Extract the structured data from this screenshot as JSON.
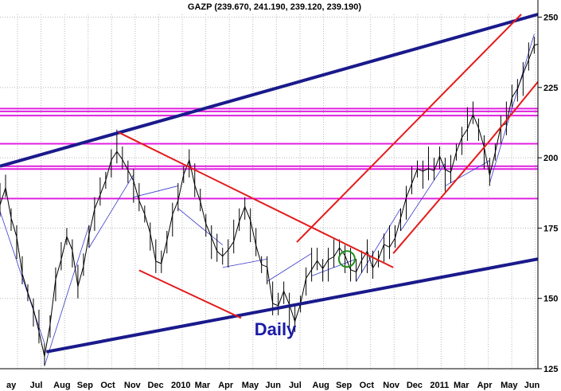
{
  "chart_data": {
    "type": "line",
    "title": "GAZP (239.670, 241.190, 239.120, 239.190)",
    "annotation": "Daily",
    "x_axis_labels": [
      "ay",
      "Jul",
      "Aug",
      "Sep",
      "Oct",
      "Nov",
      "Dec",
      "2010",
      "Mar",
      "Apr",
      "May",
      "Jun",
      "Jul",
      "Aug",
      "Sep",
      "Oct",
      "Nov",
      "Dec",
      "2011",
      "Mar",
      "Apr",
      "May",
      "Jun"
    ],
    "y_ticks": [
      125,
      150,
      175,
      200,
      225,
      250
    ],
    "ylim": [
      125,
      251
    ],
    "grid": true,
    "price_series": {
      "name": "GAZP",
      "color": "#000000",
      "points": [
        [
          0,
          185
        ],
        [
          3,
          190
        ],
        [
          6,
          178
        ],
        [
          9,
          170
        ],
        [
          12,
          160
        ],
        [
          15,
          152
        ],
        [
          18,
          145
        ],
        [
          21,
          140
        ],
        [
          24,
          130
        ],
        [
          27,
          140
        ],
        [
          30,
          155
        ],
        [
          33,
          165
        ],
        [
          36,
          172
        ],
        [
          39,
          166
        ],
        [
          42,
          156
        ],
        [
          45,
          162
        ],
        [
          48,
          172
        ],
        [
          51,
          180
        ],
        [
          54,
          188
        ],
        [
          57,
          192
        ],
        [
          60,
          198
        ],
        [
          63,
          204
        ],
        [
          66,
          200
        ],
        [
          69,
          195
        ],
        [
          72,
          190
        ],
        [
          75,
          186
        ],
        [
          78,
          180
        ],
        [
          81,
          172
        ],
        [
          84,
          165
        ],
        [
          87,
          163
        ],
        [
          90,
          170
        ],
        [
          93,
          178
        ],
        [
          96,
          186
        ],
        [
          99,
          194
        ],
        [
          102,
          198
        ],
        [
          105,
          192
        ],
        [
          108,
          185
        ],
        [
          111,
          176
        ],
        [
          114,
          170
        ],
        [
          117,
          168
        ],
        [
          120,
          165
        ],
        [
          123,
          166
        ],
        [
          126,
          172
        ],
        [
          129,
          178
        ],
        [
          132,
          182
        ],
        [
          135,
          176
        ],
        [
          138,
          170
        ],
        [
          141,
          162
        ],
        [
          144,
          160
        ],
        [
          147,
          150
        ],
        [
          150,
          148
        ],
        [
          153,
          152
        ],
        [
          156,
          146
        ],
        [
          159,
          143
        ],
        [
          162,
          148
        ],
        [
          165,
          156
        ],
        [
          168,
          162
        ],
        [
          171,
          164
        ],
        [
          174,
          160
        ],
        [
          177,
          162
        ],
        [
          180,
          166
        ],
        [
          183,
          168
        ],
        [
          186,
          164
        ],
        [
          189,
          162
        ],
        [
          192,
          160
        ],
        [
          195,
          163
        ],
        [
          198,
          165
        ],
        [
          201,
          162
        ],
        [
          204,
          164
        ],
        [
          207,
          168
        ],
        [
          210,
          170
        ],
        [
          213,
          172
        ],
        [
          216,
          178
        ],
        [
          219,
          184
        ],
        [
          222,
          192
        ],
        [
          225,
          196
        ],
        [
          228,
          194
        ],
        [
          231,
          198
        ],
        [
          234,
          196
        ],
        [
          237,
          200
        ],
        [
          240,
          194
        ],
        [
          243,
          196
        ],
        [
          246,
          202
        ],
        [
          249,
          206
        ],
        [
          252,
          212
        ],
        [
          255,
          216
        ],
        [
          258,
          210
        ],
        [
          261,
          202
        ],
        [
          264,
          195
        ],
        [
          267,
          202
        ],
        [
          270,
          210
        ],
        [
          273,
          214
        ],
        [
          276,
          222
        ],
        [
          279,
          224
        ],
        [
          282,
          228
        ],
        [
          285,
          236
        ],
        [
          288,
          240
        ],
        [
          290,
          239.19
        ]
      ]
    },
    "line_colors": {
      "price": "#000000",
      "long_term_channel": "#1a1a8c",
      "red_channel": "#e41a1a",
      "horizontal_levels": "#e020e0",
      "fine_trendlines": "#3a3acc",
      "circle_marker": "#1a8c1a",
      "grid": "#b8b8b8"
    },
    "horizontal_levels": [
      185.5,
      196,
      197,
      205,
      215,
      216.5,
      217.5
    ],
    "long_term_channel": {
      "upper": [
        [
          0,
          197
        ],
        [
          290,
          251
        ]
      ],
      "lower": [
        [
          25,
          131
        ],
        [
          290,
          164
        ]
      ]
    },
    "red_lines": [
      {
        "points": [
          [
            64,
            209
          ],
          [
            212,
            161
          ]
        ]
      },
      {
        "points": [
          [
            75,
            160
          ],
          [
            130,
            143
          ]
        ]
      },
      {
        "points": [
          [
            160,
            170
          ],
          [
            281,
            251
          ]
        ]
      },
      {
        "points": [
          [
            212,
            166
          ],
          [
            264,
            206
          ],
          [
            290,
            227
          ]
        ]
      }
    ],
    "circle_marker": {
      "x": 187,
      "y": 164
    }
  }
}
